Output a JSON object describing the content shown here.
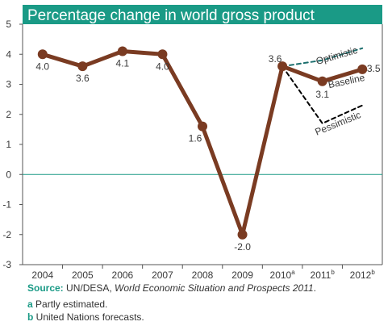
{
  "colors": {
    "title_bar": "#1a9a86",
    "main_line": "#7a3b22",
    "optimistic_line": "#1c6f6e",
    "pessimistic_line": "#000000",
    "zero_line": "#1a9a86",
    "axis": "#555555"
  },
  "chart_data": {
    "type": "line",
    "title": "Percentage change in world gross product",
    "categories": [
      "2004",
      "2005",
      "2006",
      "2007",
      "2008",
      "2009",
      "2010",
      "2011",
      "2012"
    ],
    "category_superscripts": [
      "",
      "",
      "",
      "",
      "",
      "",
      "a",
      "b",
      "b"
    ],
    "ylim": [
      -3,
      5
    ],
    "yticks": [
      "5",
      "4",
      "3",
      "2",
      "1",
      "0",
      "-1",
      "-2",
      "-3"
    ],
    "grid": false,
    "series": [
      {
        "name": "Baseline",
        "style": "solid",
        "x": [
          "2004",
          "2005",
          "2006",
          "2007",
          "2008",
          "2009",
          "2010",
          "2011",
          "2012"
        ],
        "values": [
          4.0,
          3.6,
          4.1,
          4.0,
          1.6,
          -2.0,
          3.6,
          3.1,
          3.5
        ],
        "labels": [
          "4.0",
          "3.6",
          "4.1",
          "4.0",
          "1.6",
          "-2.0",
          "3.6",
          "3.1",
          "3.5"
        ]
      },
      {
        "name": "Optimistic",
        "style": "dashed",
        "x": [
          "2010",
          "2011",
          "2012"
        ],
        "values": [
          3.6,
          3.8,
          4.2
        ]
      },
      {
        "name": "Pessimistic",
        "style": "dashed",
        "x": [
          "2010",
          "2011",
          "2012"
        ],
        "values": [
          3.6,
          1.7,
          2.3
        ]
      }
    ]
  },
  "footnotes": {
    "source_label": "Source:",
    "source_text": " UN/DESA, ",
    "source_italic": "World Economic Situation and Prospects 2011",
    "source_end": ".",
    "note_a_key": "a",
    "note_a_text": " Partly estimated.",
    "note_b_key": "b",
    "note_b_text": " United Nations forecasts."
  }
}
